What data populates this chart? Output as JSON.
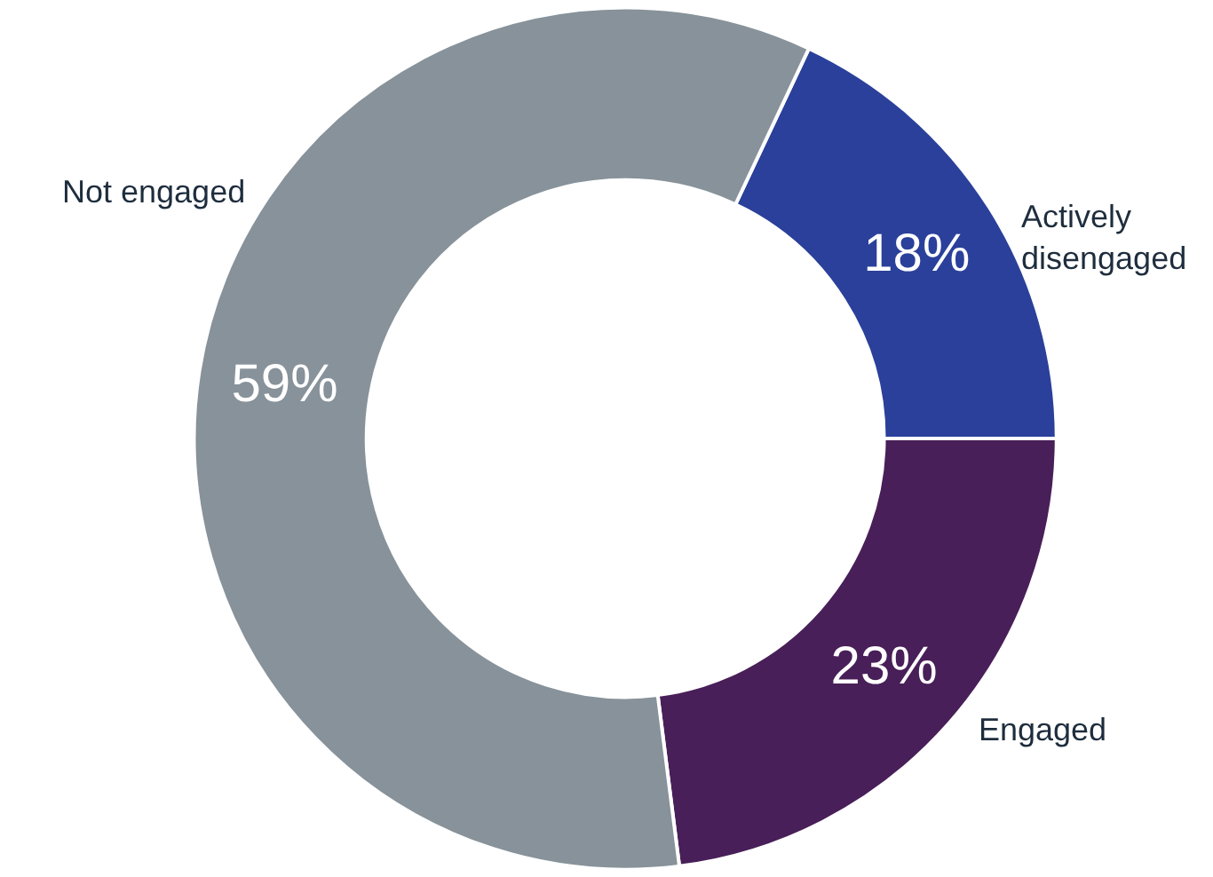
{
  "chart_data": {
    "type": "donut",
    "categories": [
      "Actively disengaged",
      "Engaged",
      "Not engaged"
    ],
    "values": [
      18,
      23,
      59
    ],
    "colors": [
      "#2a409a",
      "#481f58",
      "#87929a"
    ],
    "value_labels": [
      "18%",
      "23%",
      "59%"
    ],
    "legend": false
  }
}
